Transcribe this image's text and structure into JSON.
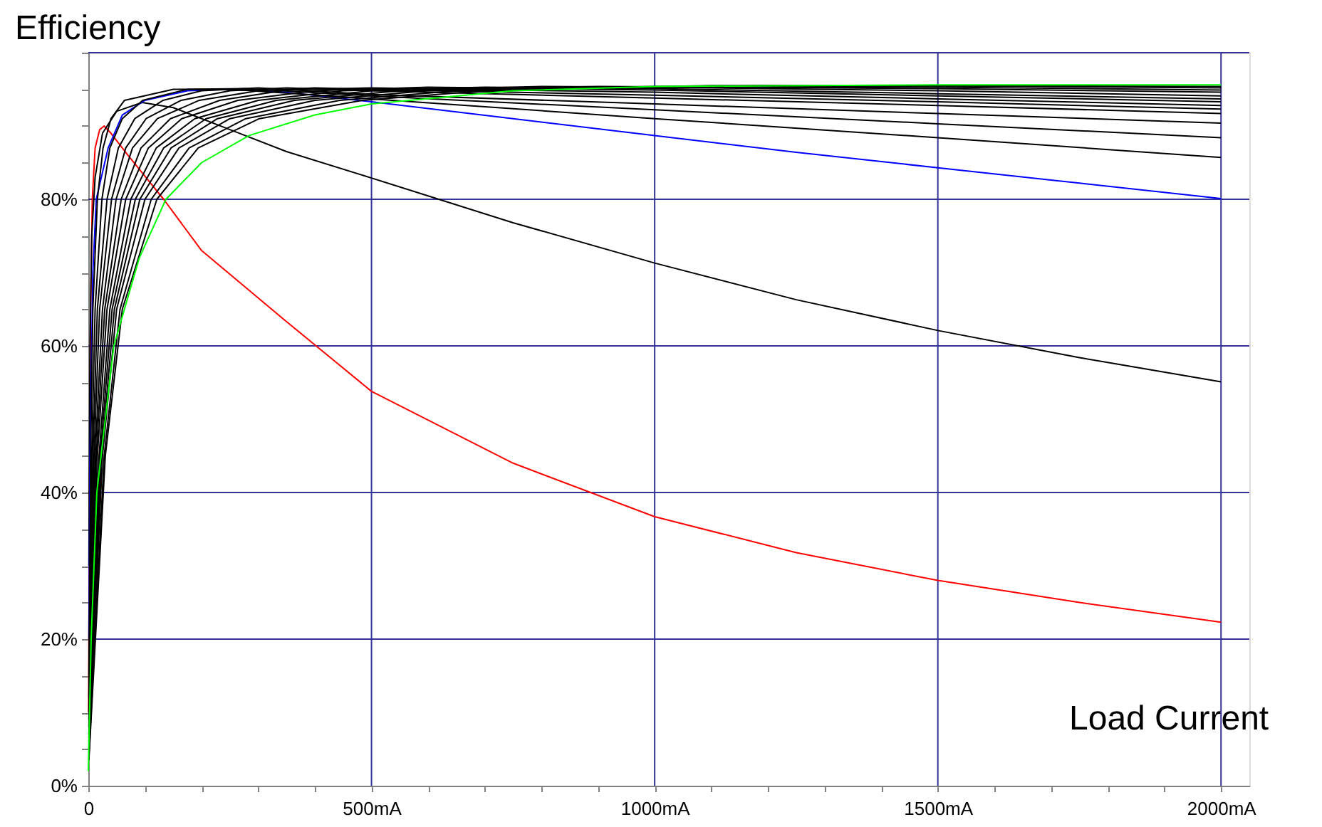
{
  "chart_data": {
    "type": "line",
    "ylabel": "Efficiency",
    "xlabel": "Load Current",
    "xlim": [
      0,
      2050
    ],
    "ylim": [
      0,
      100
    ],
    "xticks": [
      {
        "value": 0,
        "label": "0"
      },
      {
        "value": 100,
        "label": null
      },
      {
        "value": 200,
        "label": null
      },
      {
        "value": 300,
        "label": null
      },
      {
        "value": 400,
        "label": null
      },
      {
        "value": 500,
        "label": "500mA"
      },
      {
        "value": 600,
        "label": null
      },
      {
        "value": 700,
        "label": null
      },
      {
        "value": 800,
        "label": null
      },
      {
        "value": 900,
        "label": null
      },
      {
        "value": 1000,
        "label": "1000mA"
      },
      {
        "value": 1100,
        "label": null
      },
      {
        "value": 1200,
        "label": null
      },
      {
        "value": 1300,
        "label": null
      },
      {
        "value": 1400,
        "label": null
      },
      {
        "value": 1500,
        "label": "1500mA"
      },
      {
        "value": 1600,
        "label": null
      },
      {
        "value": 1700,
        "label": null
      },
      {
        "value": 1800,
        "label": null
      },
      {
        "value": 1900,
        "label": null
      },
      {
        "value": 2000,
        "label": "2000mA"
      }
    ],
    "yticks": [
      {
        "value": 0,
        "label": "0%"
      },
      {
        "value": 5,
        "label": null
      },
      {
        "value": 10,
        "label": null
      },
      {
        "value": 15,
        "label": null
      },
      {
        "value": 20,
        "label": "20%"
      },
      {
        "value": 25,
        "label": null
      },
      {
        "value": 30,
        "label": null
      },
      {
        "value": 35,
        "label": null
      },
      {
        "value": 40,
        "label": "40%"
      },
      {
        "value": 45,
        "label": null
      },
      {
        "value": 50,
        "label": null
      },
      {
        "value": 55,
        "label": null
      },
      {
        "value": 60,
        "label": "60%"
      },
      {
        "value": 65,
        "label": null
      },
      {
        "value": 70,
        "label": null
      },
      {
        "value": 75,
        "label": null
      },
      {
        "value": 80,
        "label": "80%"
      },
      {
        "value": 85,
        "label": null
      },
      {
        "value": 90,
        "label": null
      },
      {
        "value": 95,
        "label": null
      },
      {
        "value": 100,
        "label": null
      }
    ],
    "grid": true,
    "legend": false,
    "line_style": "solid",
    "series": [
      {
        "color": "#ff0000",
        "x": [
          0.5,
          2,
          4,
          7,
          12,
          20,
          28,
          40,
          70,
          133,
          200,
          347,
          500,
          750,
          1000,
          1250,
          1500,
          1750,
          2000
        ],
        "values": [
          10,
          40,
          65,
          80,
          87,
          89.5,
          90,
          89,
          86,
          80,
          73,
          63.5,
          53.8,
          44,
          36.7,
          31.8,
          28,
          25,
          22.3
        ]
      },
      {
        "color": "#000000",
        "x": [
          1,
          3,
          6,
          12,
          25,
          50,
          95,
          150,
          250,
          350,
          500,
          750,
          1000,
          1250,
          1500,
          1750,
          2000
        ],
        "values": [
          30,
          60,
          75,
          83,
          89,
          92,
          93.2,
          92.5,
          89.5,
          86.5,
          82.9,
          76.8,
          71.3,
          66.3,
          62.1,
          58.4,
          55.1
        ]
      },
      {
        "color": "#0000ff",
        "x": [
          1,
          3,
          8,
          14,
          35,
          60,
          100,
          175,
          250,
          350,
          500,
          750,
          1000,
          1250,
          1500,
          1750,
          2000
        ],
        "values": [
          20,
          45,
          70,
          80,
          87,
          91.5,
          93.5,
          94.8,
          95,
          94.6,
          93.3,
          91,
          88.7,
          86.4,
          84.3,
          82.2,
          80.1
        ]
      },
      {
        "color": "#000000",
        "x": [
          1,
          4,
          8,
          16,
          26,
          40,
          64,
          150,
          250,
          500,
          1000,
          1500,
          2000
        ],
        "values": [
          15,
          45,
          65,
          80,
          87,
          91,
          93.5,
          95,
          95,
          93.7,
          91,
          88.4,
          85.7
        ]
      },
      {
        "color": "#000000",
        "x": [
          1,
          6,
          12,
          24,
          38,
          60,
          96,
          175,
          275,
          500,
          1000,
          1500,
          2000
        ],
        "values": [
          12,
          45,
          65,
          80,
          87,
          91,
          93.5,
          95,
          95.1,
          94.1,
          92.2,
          90.3,
          88.4
        ]
      },
      {
        "color": "#000000",
        "x": [
          1,
          8,
          16,
          33,
          53,
          82,
          132,
          200,
          300,
          500,
          1000,
          1500,
          2000
        ],
        "values": [
          10,
          45,
          65,
          80,
          87,
          91,
          93.5,
          94.8,
          95.2,
          94.3,
          93,
          91.7,
          90.4
        ]
      },
      {
        "color": "#000000",
        "x": [
          1,
          10,
          20,
          41,
          66,
          102,
          164,
          250,
          350,
          500,
          1000,
          1500,
          2000
        ],
        "values": [
          9,
          45,
          65,
          80,
          87,
          91,
          93.5,
          94.8,
          95.2,
          94.8,
          93.8,
          92.8,
          91.7
        ]
      },
      {
        "color": "#000000",
        "x": [
          1,
          12,
          25,
          49,
          78,
          122,
          196,
          300,
          400,
          500,
          1000,
          1500,
          2000
        ],
        "values": [
          8,
          45,
          65,
          80,
          87,
          91,
          93.5,
          94.8,
          95.2,
          95,
          94.2,
          93.3,
          92.3
        ]
      },
      {
        "color": "#000000",
        "x": [
          1,
          14,
          29,
          58,
          93,
          145,
          232,
          350,
          500,
          1000,
          1500,
          2000
        ],
        "values": [
          7,
          45,
          65,
          80,
          87,
          91,
          93.5,
          94.9,
          95.2,
          94.6,
          93.7,
          92.8
        ]
      },
      {
        "color": "#000000",
        "x": [
          1,
          16,
          33,
          66,
          106,
          165,
          264,
          400,
          600,
          1000,
          1500,
          2000
        ],
        "values": [
          6.5,
          45,
          65,
          80,
          87,
          91,
          93.5,
          94.8,
          95.3,
          94.9,
          94.1,
          93.3
        ]
      },
      {
        "color": "#000000",
        "x": [
          1,
          19,
          38,
          75,
          120,
          188,
          300,
          450,
          700,
          1000,
          1500,
          2000
        ],
        "values": [
          6,
          45,
          65,
          80,
          87,
          91,
          93.5,
          94.8,
          95.3,
          95.1,
          94.4,
          93.7
        ]
      },
      {
        "color": "#000000",
        "x": [
          1,
          21,
          42,
          83,
          133,
          208,
          332,
          500,
          800,
          1000,
          1500,
          2000
        ],
        "values": [
          5.5,
          45,
          65,
          80,
          87,
          91,
          93.5,
          94.8,
          95.4,
          95.3,
          94.8,
          94.1
        ]
      },
      {
        "color": "#000000",
        "x": [
          1,
          23,
          46,
          91,
          146,
          228,
          364,
          550,
          900,
          1500,
          2000
        ],
        "values": [
          5,
          45,
          65,
          80,
          87,
          91,
          93.5,
          94.8,
          95.4,
          95.1,
          94.6
        ]
      },
      {
        "color": "#000000",
        "x": [
          1,
          25,
          50,
          100,
          160,
          250,
          400,
          600,
          1000,
          1500,
          2000
        ],
        "values": [
          4.5,
          45,
          65,
          80,
          87,
          91,
          93.5,
          94.8,
          95.4,
          95.3,
          94.9
        ]
      },
      {
        "color": "#000000",
        "x": [
          1,
          28,
          56,
          111,
          178,
          278,
          444,
          650,
          1100,
          1500,
          2000
        ],
        "values": [
          4,
          45,
          65,
          80,
          87,
          91,
          93.5,
          94.8,
          95.5,
          95.5,
          95.2
        ]
      },
      {
        "color": "#000000",
        "x": [
          1,
          30,
          60,
          121,
          194,
          302,
          484,
          700,
          1200,
          2000
        ],
        "values": [
          3.5,
          45,
          65,
          80,
          87,
          91,
          93.5,
          94.8,
          95.5,
          95.4
        ]
      },
      {
        "color": "#00ff00",
        "x": [
          0,
          5,
          15,
          45,
          90,
          137,
          200,
          284,
          400,
          500,
          750,
          1000,
          1500,
          2000
        ],
        "values": [
          2,
          20,
          40,
          60,
          72,
          80,
          85,
          88.7,
          91.5,
          93,
          94.8,
          95.4,
          95.6,
          95.6
        ]
      }
    ]
  }
}
